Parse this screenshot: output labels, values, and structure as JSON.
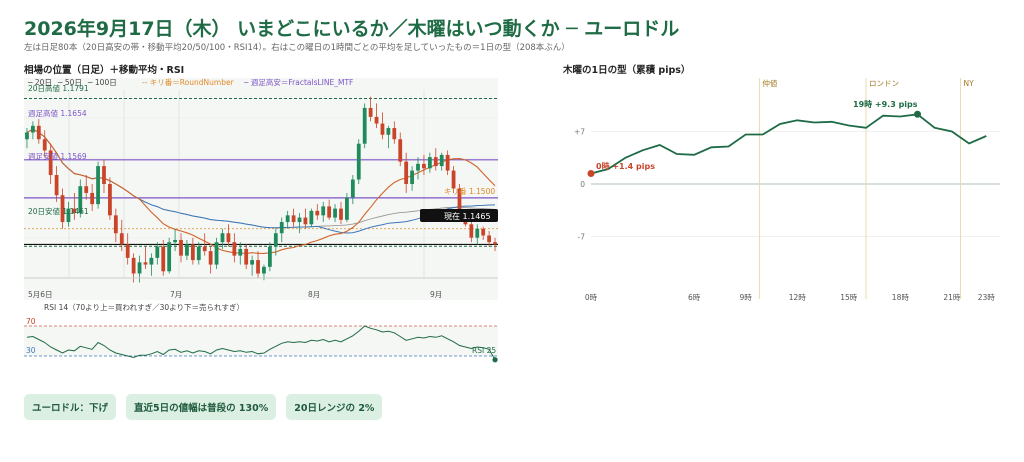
{
  "header": {
    "title": "2026年9月17日（木） いまどこにいるか／木曜はいつ動くか ─ ユーロドル",
    "subtitle": "左は日足80本（20日高安の帯・移動平均20/50/100・RSI14）。右はこの曜日の1時間ごとの平均を足していったもの＝1日の型（208本ぶん）"
  },
  "left_panel": {
    "title": "相場の位置（日足）＋移動平均・RSI",
    "legend": [
      "─ 20日",
      "─ 50日",
      "─ 100日",
      "-- キリ番＝RoundNumber",
      "─ 週足高安＝FractalsLINE_MTF"
    ],
    "level_labels": {
      "high20": "20日高値 1.1791",
      "weekly_high": "週足高値 1.1654",
      "weekly_low": "週足安値 1.1569",
      "low20": "20日安値 1.1461",
      "round": "キリ番 1.1500",
      "current": "現在 1.1465"
    },
    "month_labels": [
      "5月6日",
      "7月",
      "8月",
      "9月"
    ],
    "rsi_label": "RSI 14（70より上＝買われすぎ／30より下＝売られすぎ）",
    "rsi_ticks": [
      "70",
      "30"
    ],
    "rsi_value_label": "RSI 25"
  },
  "right_panel": {
    "title": "木曜の1日の型（累積 pips）",
    "sessions": [
      "仲値",
      "ロンドン",
      "NY"
    ],
    "y_ticks": [
      "+7",
      "0",
      "-7"
    ],
    "x_ticks": [
      "0時",
      "6時",
      "9時",
      "12時",
      "15時",
      "18時",
      "21時",
      "23時"
    ],
    "start_label": "0時 +1.4 pips",
    "peak_label": "19時 +9.3 pips"
  },
  "badges": [
    "ユーロドル：下げ",
    "直近5日の値幅は普段の 130%",
    "20日レンジの 2%"
  ],
  "colors": {
    "accent": "#1e6b45",
    "up": "#1f8a5b",
    "down": "#c9452a",
    "ma20": "#d0642a",
    "ma50": "#3b78b8",
    "ma100": "#999999",
    "fractal": "#7d55c7",
    "round": "#e08a2a"
  },
  "chart_data": [
    {
      "type": "candlestick",
      "title": "相場の位置（日足）＋移動平均・RSI",
      "ylim": [
        1.139,
        1.181
      ],
      "levels": {
        "high20": 1.1791,
        "weekly_high": 1.1654,
        "weekly_low": 1.1569,
        "low20": 1.1461,
        "round": 1.15,
        "current": 1.1465
      },
      "ohlc": [
        [
          1.17,
          1.1725,
          1.168,
          1.1715
        ],
        [
          1.1715,
          1.174,
          1.17,
          1.173
        ],
        [
          1.173,
          1.1745,
          1.169,
          1.17
        ],
        [
          1.17,
          1.172,
          1.166,
          1.1675
        ],
        [
          1.1675,
          1.169,
          1.16,
          1.162
        ],
        [
          1.162,
          1.164,
          1.156,
          1.1575
        ],
        [
          1.1575,
          1.159,
          1.15,
          1.1515
        ],
        [
          1.1515,
          1.156,
          1.1505,
          1.1545
        ],
        [
          1.1545,
          1.158,
          1.152,
          1.1535
        ],
        [
          1.1535,
          1.161,
          1.1525,
          1.1595
        ],
        [
          1.1595,
          1.162,
          1.1565,
          1.158
        ],
        [
          1.158,
          1.16,
          1.154,
          1.1555
        ],
        [
          1.1555,
          1.165,
          1.1545,
          1.164
        ],
        [
          1.164,
          1.1655,
          1.158,
          1.16
        ],
        [
          1.16,
          1.1615,
          1.152,
          1.153
        ],
        [
          1.153,
          1.1545,
          1.147,
          1.149
        ],
        [
          1.149,
          1.152,
          1.145,
          1.1465
        ],
        [
          1.1465,
          1.149,
          1.142,
          1.1435
        ],
        [
          1.1435,
          1.1445,
          1.138,
          1.14
        ],
        [
          1.14,
          1.144,
          1.138,
          1.1425
        ],
        [
          1.1425,
          1.146,
          1.141,
          1.142
        ],
        [
          1.142,
          1.1445,
          1.1395,
          1.1435
        ],
        [
          1.1435,
          1.147,
          1.142,
          1.146
        ],
        [
          1.146,
          1.1475,
          1.1395,
          1.1405
        ],
        [
          1.1405,
          1.148,
          1.14,
          1.147
        ],
        [
          1.147,
          1.15,
          1.145,
          1.1475
        ],
        [
          1.1475,
          1.149,
          1.1425,
          1.144
        ],
        [
          1.144,
          1.1475,
          1.143,
          1.1465
        ],
        [
          1.1465,
          1.148,
          1.142,
          1.143
        ],
        [
          1.143,
          1.147,
          1.142,
          1.146
        ],
        [
          1.146,
          1.149,
          1.144,
          1.145
        ],
        [
          1.145,
          1.146,
          1.14,
          1.142
        ],
        [
          1.142,
          1.148,
          1.141,
          1.147
        ],
        [
          1.147,
          1.15,
          1.1455,
          1.149
        ],
        [
          1.149,
          1.151,
          1.146,
          1.147
        ],
        [
          1.147,
          1.149,
          1.1425,
          1.144
        ],
        [
          1.144,
          1.147,
          1.142,
          1.1455
        ],
        [
          1.1455,
          1.1465,
          1.141,
          1.142
        ],
        [
          1.142,
          1.144,
          1.1395,
          1.143
        ],
        [
          1.143,
          1.145,
          1.139,
          1.14
        ],
        [
          1.14,
          1.142,
          1.1385,
          1.1415
        ],
        [
          1.1415,
          1.147,
          1.1405,
          1.146
        ],
        [
          1.146,
          1.15,
          1.144,
          1.149
        ],
        [
          1.149,
          1.1525,
          1.147,
          1.1515
        ],
        [
          1.1515,
          1.154,
          1.15,
          1.153
        ],
        [
          1.153,
          1.1545,
          1.1505,
          1.1515
        ],
        [
          1.1515,
          1.1535,
          1.149,
          1.1525
        ],
        [
          1.1525,
          1.1545,
          1.15,
          1.151
        ],
        [
          1.151,
          1.1545,
          1.1505,
          1.154
        ],
        [
          1.154,
          1.1555,
          1.152,
          1.153
        ],
        [
          1.153,
          1.156,
          1.1515,
          1.155
        ],
        [
          1.155,
          1.1565,
          1.152,
          1.1525
        ],
        [
          1.1525,
          1.1555,
          1.1515,
          1.1545
        ],
        [
          1.1545,
          1.156,
          1.151,
          1.152
        ],
        [
          1.152,
          1.158,
          1.1515,
          1.157
        ],
        [
          1.157,
          1.162,
          1.1555,
          1.161
        ],
        [
          1.161,
          1.17,
          1.16,
          1.169
        ],
        [
          1.169,
          1.178,
          1.168,
          1.177
        ],
        [
          1.177,
          1.1795,
          1.174,
          1.175
        ],
        [
          1.175,
          1.178,
          1.1725,
          1.1735
        ],
        [
          1.1735,
          1.176,
          1.17,
          1.171
        ],
        [
          1.171,
          1.173,
          1.168,
          1.1725
        ],
        [
          1.1725,
          1.174,
          1.169,
          1.17
        ],
        [
          1.17,
          1.1715,
          1.164,
          1.165
        ],
        [
          1.165,
          1.167,
          1.158,
          1.16
        ],
        [
          1.16,
          1.164,
          1.1585,
          1.163
        ],
        [
          1.163,
          1.166,
          1.161,
          1.1645
        ],
        [
          1.1645,
          1.1665,
          1.162,
          1.1635
        ],
        [
          1.1635,
          1.167,
          1.1625,
          1.166
        ],
        [
          1.166,
          1.168,
          1.163,
          1.164
        ],
        [
          1.164,
          1.167,
          1.163,
          1.1665
        ],
        [
          1.1665,
          1.1675,
          1.162,
          1.163
        ],
        [
          1.163,
          1.164,
          1.158,
          1.159
        ],
        [
          1.159,
          1.16,
          1.152,
          1.153
        ],
        [
          1.153,
          1.154,
          1.1505,
          1.151
        ],
        [
          1.151,
          1.152,
          1.147,
          1.148
        ],
        [
          1.148,
          1.151,
          1.1465,
          1.15
        ],
        [
          1.15,
          1.1505,
          1.1475,
          1.1485
        ],
        [
          1.1485,
          1.1495,
          1.146,
          1.147
        ],
        [
          1.147,
          1.148,
          1.145,
          1.1465
        ]
      ],
      "rsi": [
        55,
        56,
        52,
        48,
        42,
        38,
        34,
        38,
        37,
        43,
        41,
        39,
        48,
        44,
        38,
        34,
        32,
        30,
        28,
        31,
        31,
        33,
        36,
        32,
        38,
        39,
        35,
        37,
        34,
        37,
        36,
        33,
        38,
        40,
        38,
        36,
        37,
        35,
        36,
        33,
        34,
        39,
        43,
        47,
        49,
        48,
        49,
        48,
        51,
        50,
        52,
        49,
        51,
        49,
        53,
        57,
        63,
        70,
        67,
        65,
        62,
        63,
        61,
        56,
        51,
        53,
        55,
        54,
        56,
        55,
        57,
        53,
        49,
        44,
        42,
        40,
        42,
        41,
        39,
        25
      ]
    },
    {
      "type": "line",
      "title": "木曜の1日の型（累積 pips）",
      "x": [
        0,
        1,
        2,
        3,
        4,
        5,
        6,
        7,
        8,
        9,
        10,
        11,
        12,
        13,
        14,
        15,
        16,
        17,
        18,
        19,
        20,
        21,
        22,
        23
      ],
      "y": [
        1.4,
        2.0,
        3.5,
        4.5,
        5.2,
        4.0,
        3.9,
        4.9,
        5.0,
        6.6,
        6.6,
        8.0,
        8.5,
        8.2,
        8.3,
        7.8,
        7.5,
        9.1,
        9.0,
        9.3,
        7.5,
        7.0,
        5.4,
        6.4
      ],
      "ylim": [
        -10,
        12
      ],
      "xlim": [
        0,
        23.8
      ],
      "annotations": [
        {
          "x": 0,
          "y": 1.4,
          "label": "0時 +1.4 pips"
        },
        {
          "x": 19,
          "y": 9.3,
          "label": "19時 +9.3 pips"
        }
      ],
      "sessions": [
        {
          "name": "仲値",
          "x": 9.8
        },
        {
          "name": "ロンドン",
          "x": 16
        },
        {
          "name": "NY",
          "x": 21.5
        }
      ]
    }
  ]
}
